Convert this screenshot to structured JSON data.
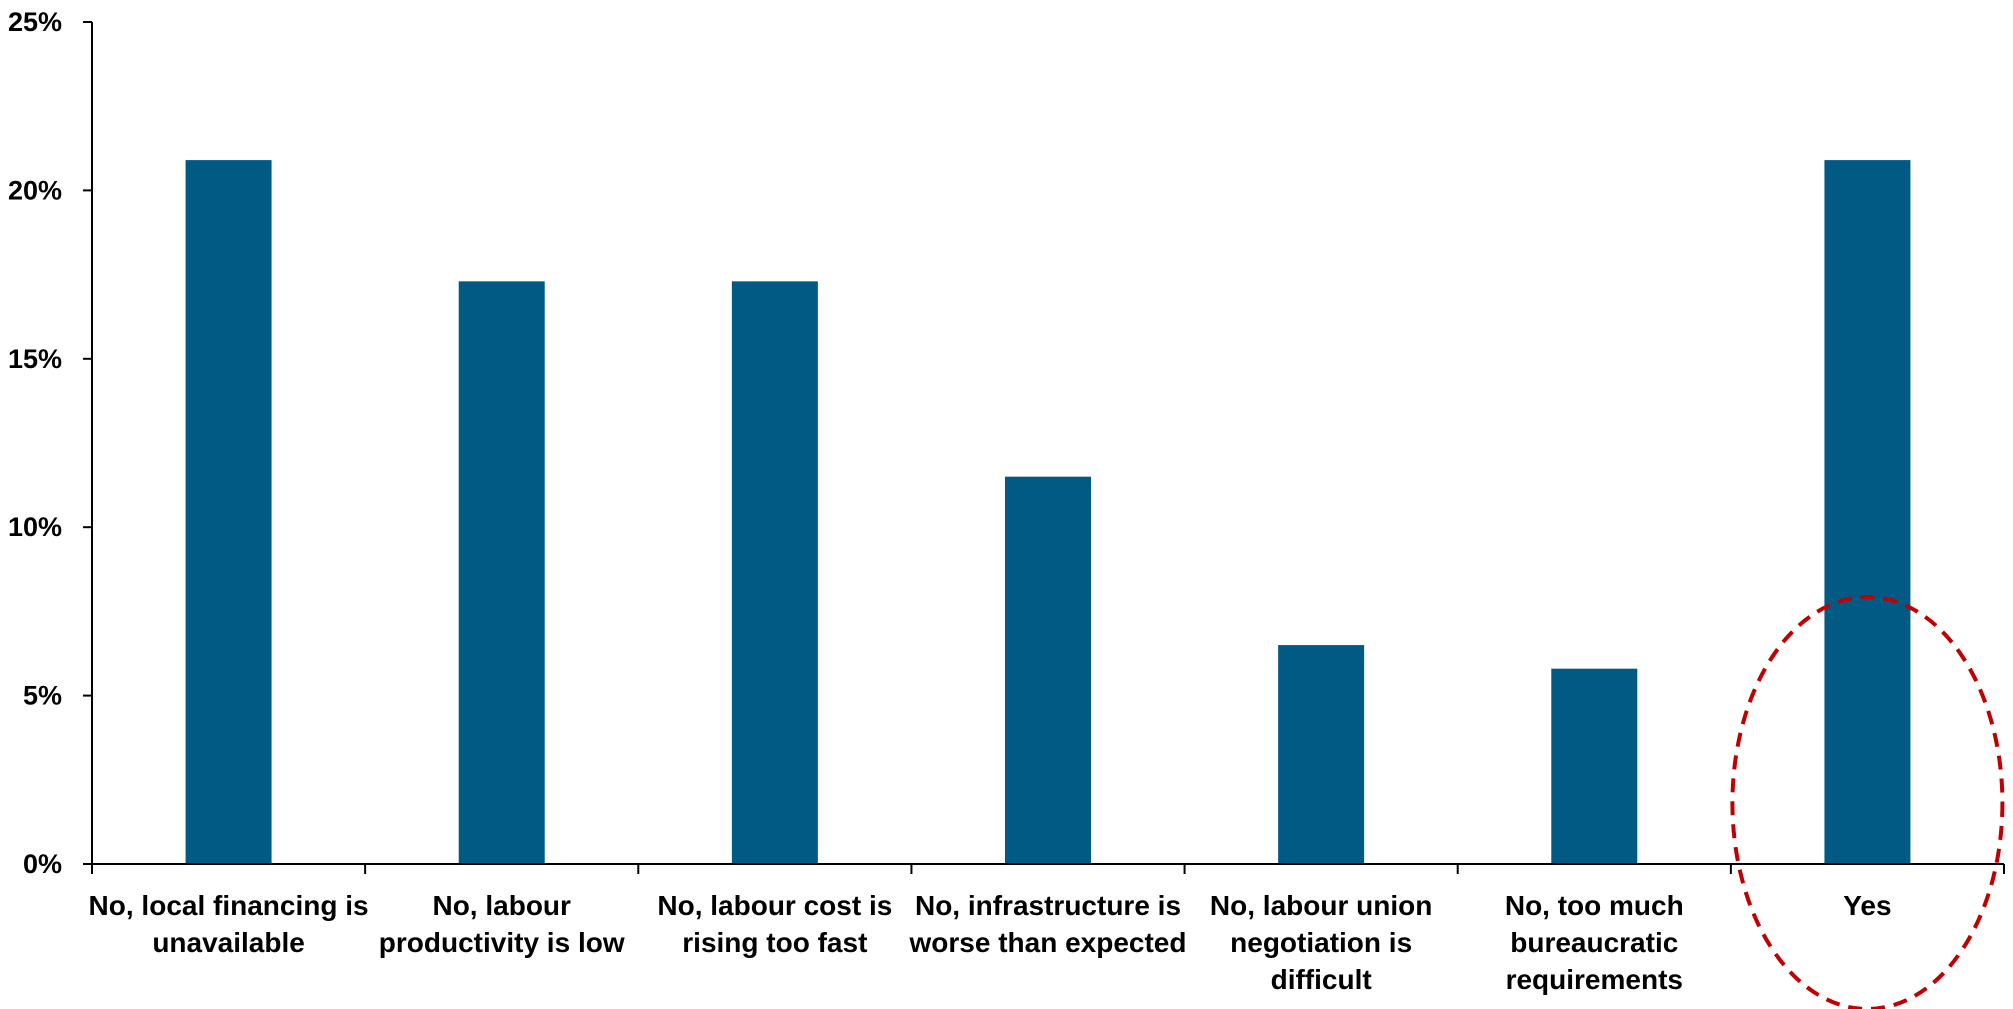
{
  "chart_data": {
    "type": "bar",
    "title": "",
    "xlabel": "",
    "ylabel": "",
    "ylim": [
      0,
      25
    ],
    "yticks": [
      {
        "value": 0,
        "label": "0%"
      },
      {
        "value": 5,
        "label": "5%"
      },
      {
        "value": 10,
        "label": "10%"
      },
      {
        "value": 15,
        "label": "15%"
      },
      {
        "value": 20,
        "label": "20%"
      },
      {
        "value": 25,
        "label": "25%"
      }
    ],
    "categories": [
      [
        "No,  local financing is",
        "unavailable"
      ],
      [
        "No, labour",
        "productivity is low"
      ],
      [
        "No,  labour cost is",
        "rising too fast"
      ],
      [
        "No,  infrastructure is",
        "worse than expected"
      ],
      [
        "No,  labour union",
        "negotiation is",
        "difficult"
      ],
      [
        "No,  too much",
        "bureaucratic",
        "requirements"
      ],
      [
        "Yes"
      ]
    ],
    "values": [
      20.9,
      17.3,
      17.3,
      11.5,
      6.5,
      5.8,
      20.9
    ],
    "bar_color": "#005a84",
    "grid": false,
    "legend": "none",
    "highlight": {
      "category_index": 6,
      "shape": "dashed-ellipse",
      "color": "#c00000"
    }
  }
}
